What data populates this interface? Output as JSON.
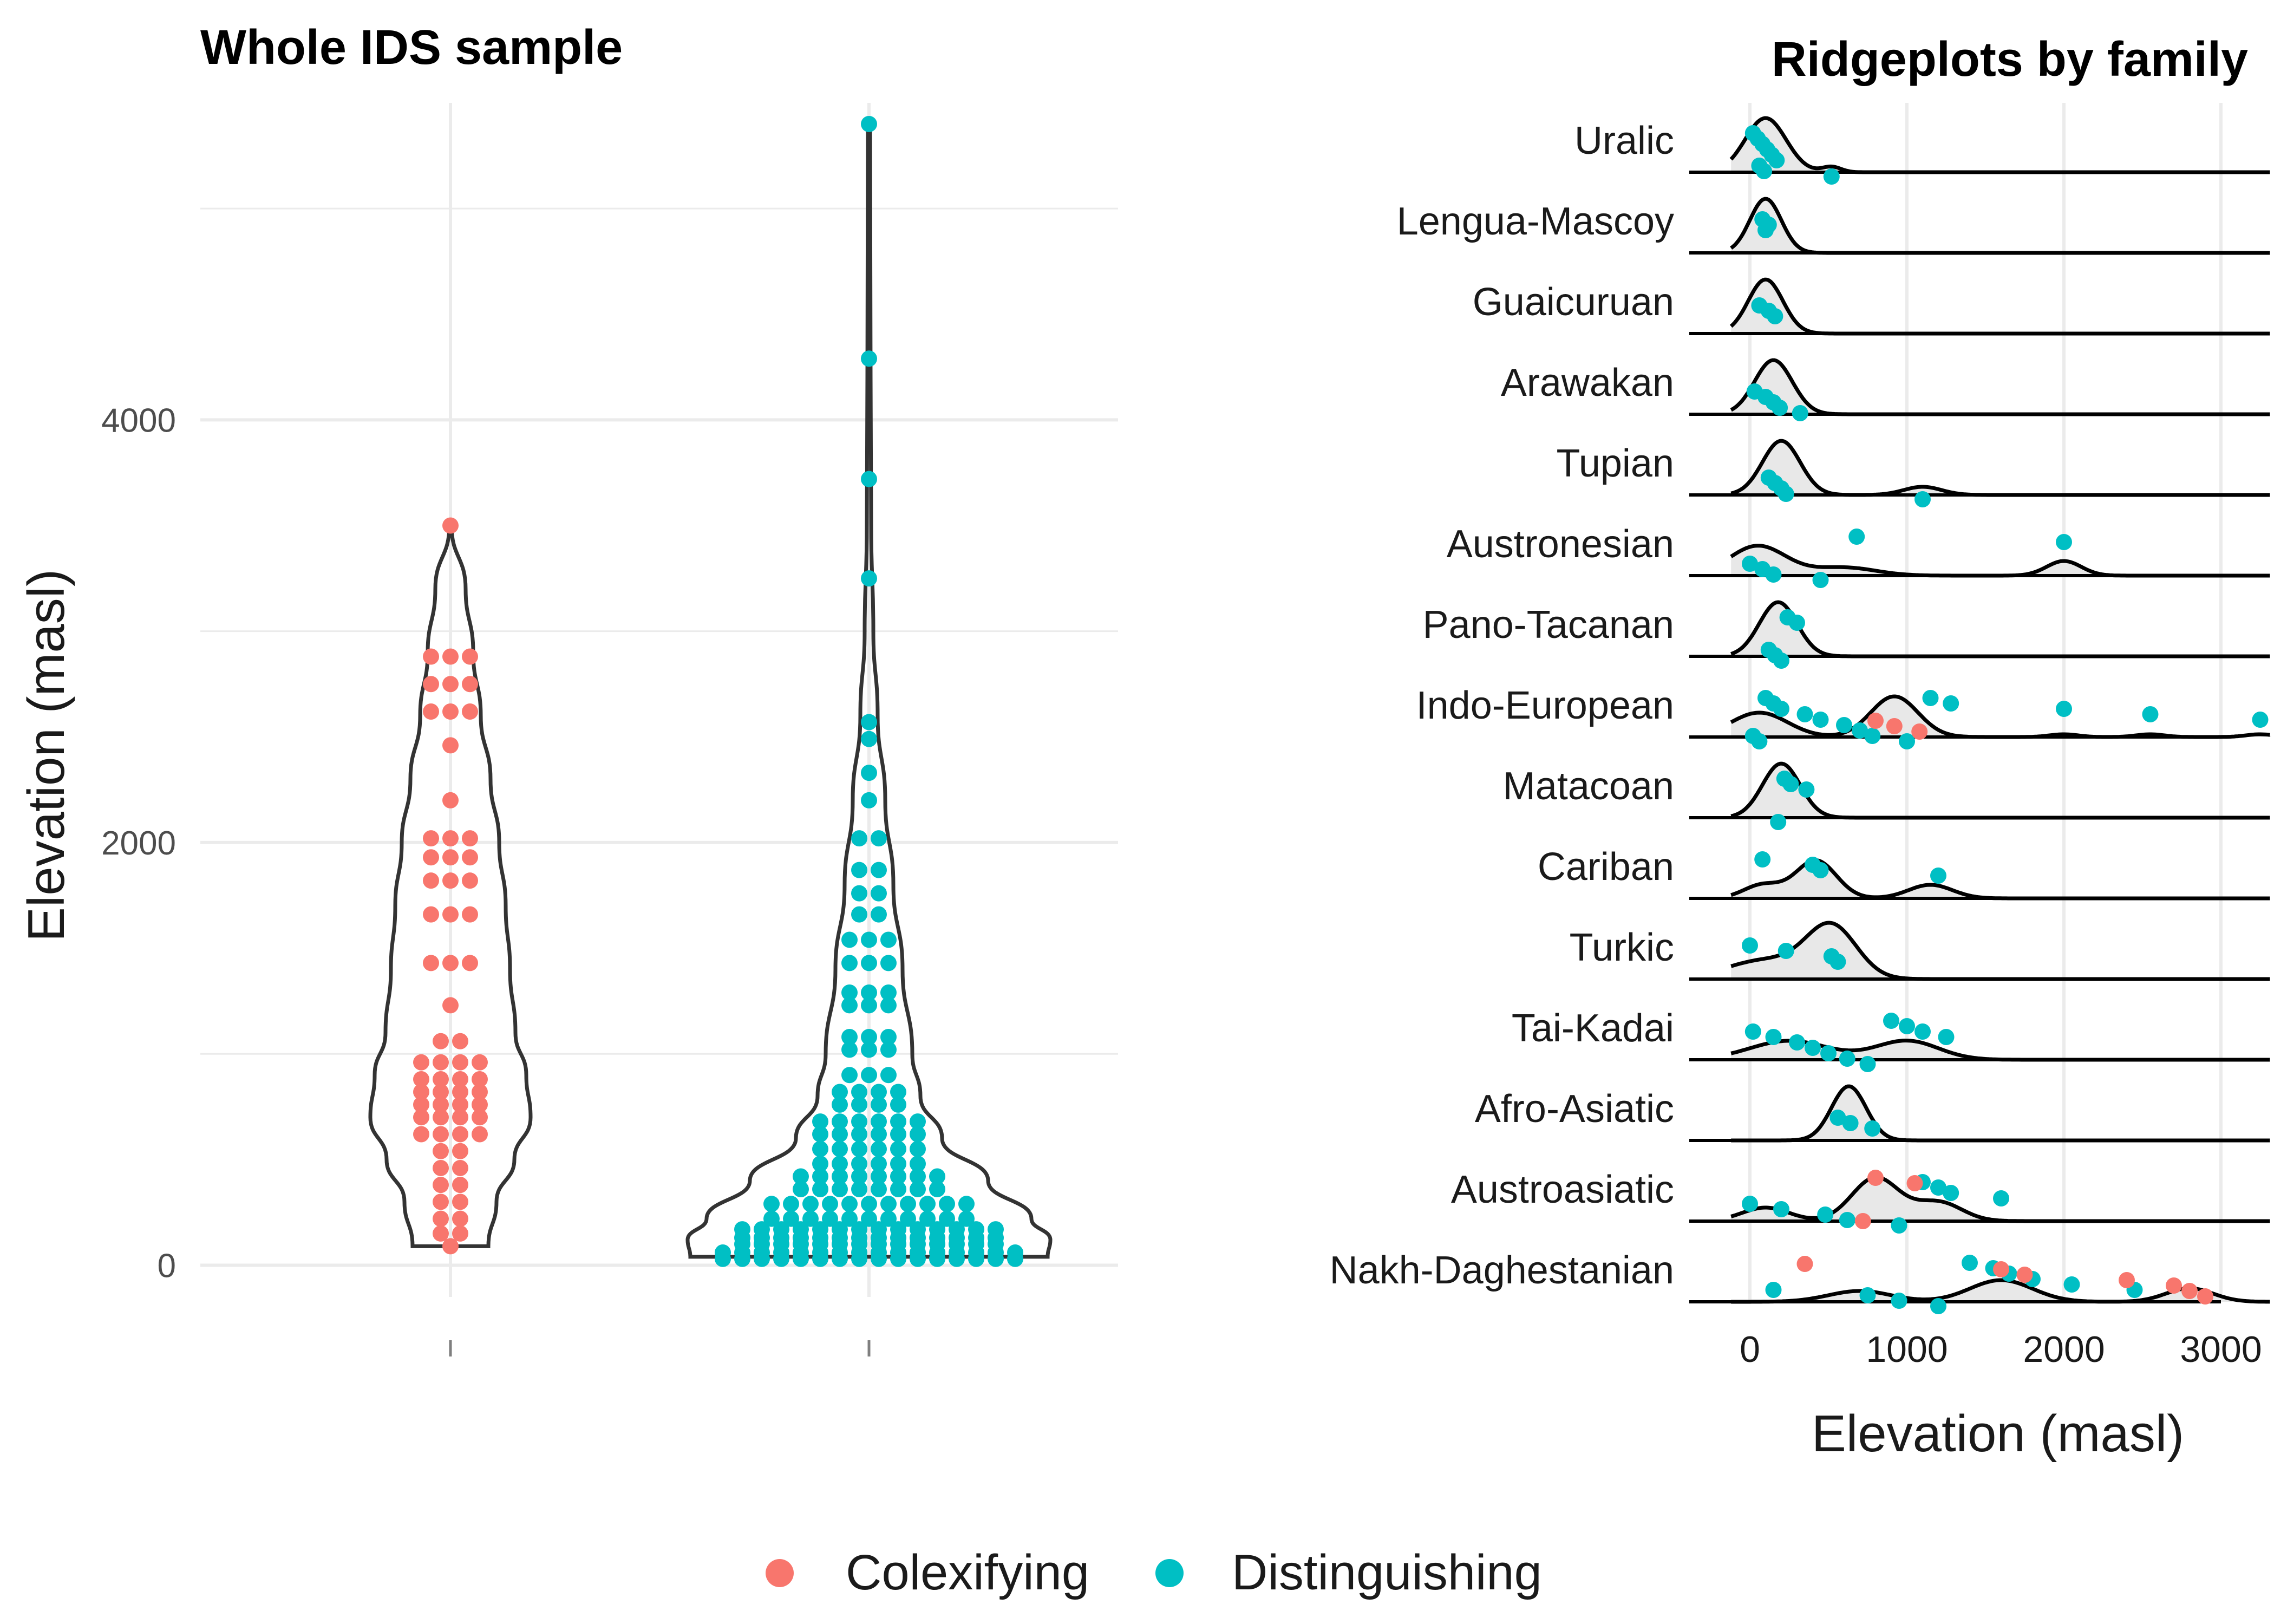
{
  "colors": {
    "colexifying": "#F8766D",
    "distinguishing": "#00BFC4",
    "grid": "#EBEBEB",
    "outline": "#333333",
    "ridge_fill": "#E8E8E8"
  },
  "chart_data": [
    {
      "type": "violin",
      "title": "Whole IDS sample",
      "xlabel": "",
      "ylabel": "Elevation (masl)",
      "ylim": [
        -150,
        5500
      ],
      "y_ticks": [
        0,
        2000,
        4000
      ],
      "y_ticks_text": [
        "0",
        "2000",
        "4000"
      ],
      "grid": true,
      "series": [
        {
          "name": "Colexifying",
          "violin_max": 3500,
          "values": [
            90,
            150,
            220,
            300,
            380,
            460,
            540,
            620,
            700,
            760,
            820,
            880,
            960,
            1060,
            1230,
            1430,
            1660,
            1820,
            1930,
            2020,
            2200,
            2460,
            2620,
            2750,
            2880,
            3500
          ]
        },
        {
          "name": "Distinguishing",
          "violin_max": 5400,
          "values": [
            30,
            60,
            100,
            130,
            170,
            220,
            290,
            360,
            420,
            480,
            550,
            620,
            680,
            760,
            820,
            900,
            1020,
            1080,
            1230,
            1290,
            1430,
            1540,
            1660,
            1760,
            1870,
            2020,
            2200,
            2330,
            2490,
            2570,
            3250,
            3720,
            4290,
            5400
          ]
        }
      ]
    },
    {
      "type": "ridgeline",
      "title": "Ridgeplots by family",
      "xlabel": "Elevation (masl)",
      "ylabel": "",
      "xlim": [
        -350,
        3650
      ],
      "x_ticks": [
        0,
        1000,
        2000,
        3000
      ],
      "x_ticks_text": [
        "0",
        "1000",
        "2000",
        "3000"
      ],
      "grid": true,
      "families": [
        {
          "name": "Uralic",
          "peaks": [
            [
              100,
              130,
              1.0
            ],
            [
              520,
              60,
              0.1
            ]
          ],
          "distinguishing": [
            20,
            50,
            80,
            110,
            140,
            170,
            60,
            90,
            520
          ],
          "colexifying": []
        },
        {
          "name": "Lengua-Mascoy",
          "peaks": [
            [
              100,
              100,
              1.0
            ]
          ],
          "distinguishing": [
            80,
            120,
            100
          ],
          "colexifying": []
        },
        {
          "name": "Guaicuruan",
          "peaks": [
            [
              100,
              110,
              1.0
            ]
          ],
          "distinguishing": [
            60,
            120,
            160
          ],
          "colexifying": []
        },
        {
          "name": "Arawakan",
          "peaks": [
            [
              150,
              120,
              1.0
            ]
          ],
          "distinguishing": [
            30,
            100,
            150,
            190,
            320
          ],
          "colexifying": []
        },
        {
          "name": "Tupian",
          "peaks": [
            [
              200,
              120,
              1.0
            ],
            [
              1100,
              120,
              0.15
            ]
          ],
          "distinguishing": [
            120,
            160,
            200,
            230,
            1100
          ],
          "colexifying": []
        },
        {
          "name": "Austronesian",
          "peaks": [
            [
              50,
              180,
              0.55
            ],
            [
              600,
              200,
              0.15
            ],
            [
              2000,
              110,
              0.27
            ]
          ],
          "distinguishing": [
            0,
            80,
            150,
            450,
            680,
            2000
          ],
          "colexifying": []
        },
        {
          "name": "Pano-Tacanan",
          "peaks": [
            [
              180,
              120,
              1.0
            ]
          ],
          "distinguishing": [
            120,
            160,
            200,
            240,
            300
          ],
          "colexifying": []
        },
        {
          "name": "Indo-European",
          "peaks": [
            [
              60,
              180,
              0.45
            ],
            [
              920,
              150,
              0.75
            ],
            [
              2000,
              90,
              0.05
            ],
            [
              2550,
              90,
              0.05
            ],
            [
              3250,
              90,
              0.05
            ]
          ],
          "distinguishing": [
            20,
            60,
            100,
            150,
            200,
            350,
            450,
            600,
            700,
            780,
            1000,
            1150,
            1280,
            2000,
            2550,
            3250
          ],
          "colexifying": [
            800,
            920,
            1080
          ]
        },
        {
          "name": "Matacoan",
          "peaks": [
            [
              200,
              120,
              1.0
            ]
          ],
          "distinguishing": [
            180,
            220,
            260,
            360
          ],
          "colexifying": []
        },
        {
          "name": "Cariban",
          "peaks": [
            [
              80,
              120,
              0.25
            ],
            [
              420,
              130,
              0.7
            ],
            [
              1150,
              140,
              0.25
            ]
          ],
          "distinguishing": [
            80,
            400,
            450,
            1200
          ],
          "colexifying": []
        },
        {
          "name": "Turkic",
          "peaks": [
            [
              100,
              250,
              0.35
            ],
            [
              520,
              160,
              0.95
            ]
          ],
          "distinguishing": [
            0,
            230,
            520,
            560
          ],
          "colexifying": []
        },
        {
          "name": "Tai-Kadai",
          "peaks": [
            [
              250,
              250,
              0.35
            ],
            [
              1000,
              200,
              0.35
            ]
          ],
          "distinguishing": [
            20,
            150,
            300,
            400,
            500,
            620,
            750,
            900,
            1000,
            1100,
            1250
          ],
          "colexifying": []
        },
        {
          "name": "Afro-Asiatic",
          "peaks": [
            [
              630,
              110,
              1.0
            ]
          ],
          "distinguishing": [
            560,
            640,
            780
          ],
          "colexifying": []
        },
        {
          "name": "Austroasiatic",
          "peaks": [
            [
              100,
              150,
              0.25
            ],
            [
              800,
              150,
              0.8
            ],
            [
              1200,
              150,
              0.35
            ]
          ],
          "distinguishing": [
            0,
            200,
            480,
            620,
            950,
            1100,
            1200,
            1280,
            1600
          ],
          "colexifying": [
            720,
            800,
            1050
          ]
        },
        {
          "name": "Nakh-Daghestanian",
          "peaks": [
            [
              700,
              200,
              0.2
            ],
            [
              1600,
              200,
              0.4
            ],
            [
              2800,
              150,
              0.25
            ]
          ],
          "distinguishing": [
            150,
            750,
            950,
            1200,
            1400,
            1550,
            1650,
            1800,
            2050,
            2450
          ],
          "colexifying": [
            350,
            1600,
            1750,
            2400,
            2700,
            2800,
            2900
          ]
        }
      ]
    }
  ],
  "legend": {
    "position": "bottom",
    "items": [
      {
        "label": "Colexifying",
        "color": "#F8766D"
      },
      {
        "label": "Distinguishing",
        "color": "#00BFC4"
      }
    ]
  }
}
